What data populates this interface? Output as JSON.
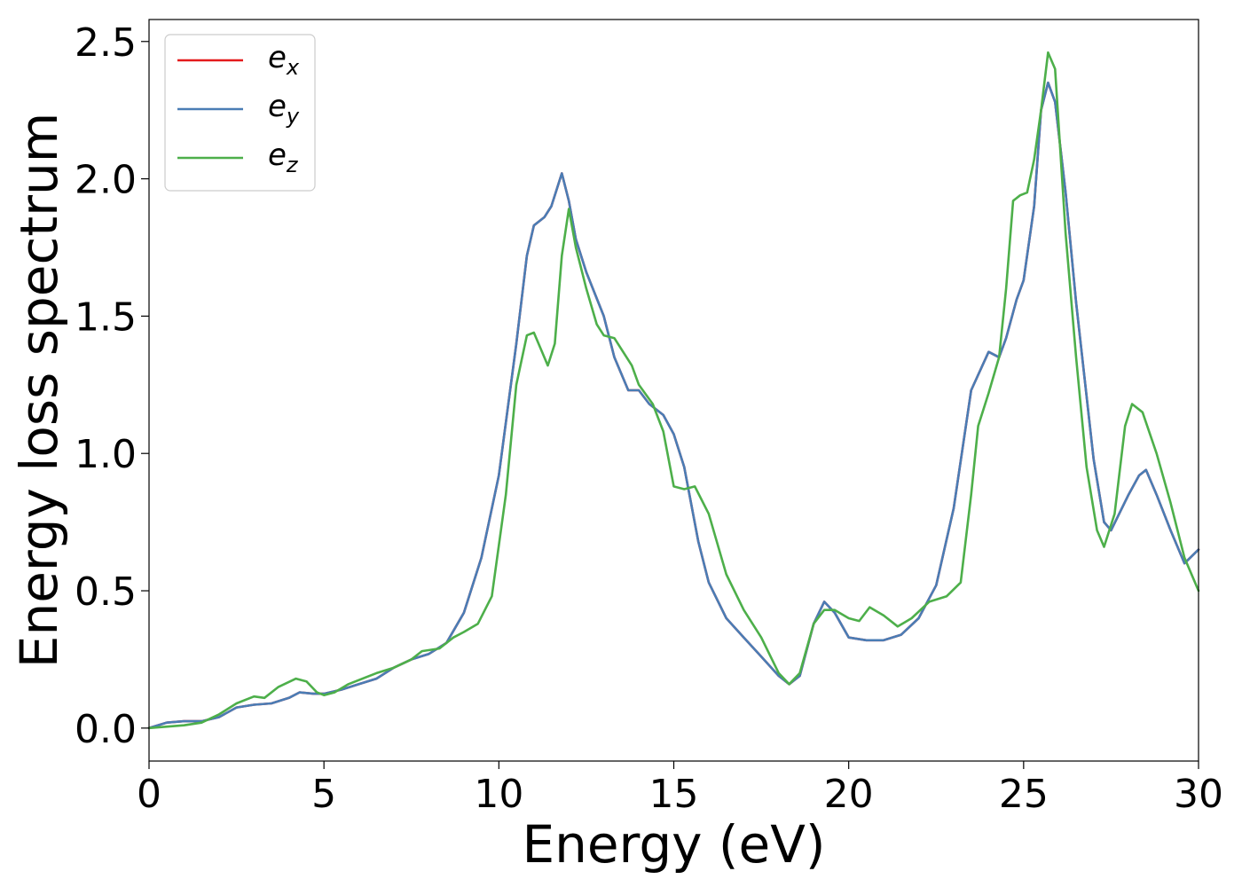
{
  "chart_data": {
    "type": "line",
    "xlabel": "Energy (eV)",
    "ylabel": "Energy loss spectrum",
    "xlim": [
      0,
      30
    ],
    "ylim": [
      -0.12,
      2.58
    ],
    "xticks": [
      0,
      5,
      10,
      15,
      20,
      25,
      30
    ],
    "xtick_labels": [
      "0",
      "5",
      "10",
      "15",
      "20",
      "25",
      "30"
    ],
    "yticks": [
      0.0,
      0.5,
      1.0,
      1.5,
      2.0,
      2.5
    ],
    "ytick_labels": [
      "0.0",
      "0.5",
      "1.0",
      "1.5",
      "2.0",
      "2.5"
    ],
    "grid": false,
    "legend_position": "top-left",
    "series": [
      {
        "name": "e",
        "subscript": "x",
        "color": "#e41a1c",
        "points": [
          [
            0,
            0
          ],
          [
            0.5,
            0.02
          ],
          [
            1,
            0.025
          ],
          [
            1.5,
            0.025
          ],
          [
            2,
            0.04
          ],
          [
            2.5,
            0.075
          ],
          [
            3,
            0.085
          ],
          [
            3.5,
            0.09
          ],
          [
            4,
            0.11
          ],
          [
            4.3,
            0.13
          ],
          [
            4.7,
            0.125
          ],
          [
            5,
            0.125
          ],
          [
            5.5,
            0.14
          ],
          [
            6,
            0.16
          ],
          [
            6.5,
            0.18
          ],
          [
            7,
            0.22
          ],
          [
            7.5,
            0.25
          ],
          [
            8,
            0.27
          ],
          [
            8.5,
            0.31
          ],
          [
            9,
            0.42
          ],
          [
            9.5,
            0.62
          ],
          [
            10,
            0.92
          ],
          [
            10.5,
            1.4
          ],
          [
            10.8,
            1.72
          ],
          [
            11,
            1.83
          ],
          [
            11.3,
            1.86
          ],
          [
            11.5,
            1.9
          ],
          [
            11.8,
            2.02
          ],
          [
            12,
            1.92
          ],
          [
            12.2,
            1.78
          ],
          [
            12.5,
            1.66
          ],
          [
            13,
            1.5
          ],
          [
            13.3,
            1.35
          ],
          [
            13.7,
            1.23
          ],
          [
            14,
            1.23
          ],
          [
            14.3,
            1.18
          ],
          [
            14.7,
            1.14
          ],
          [
            15,
            1.07
          ],
          [
            15.3,
            0.95
          ],
          [
            15.7,
            0.68
          ],
          [
            16,
            0.53
          ],
          [
            16.5,
            0.4
          ],
          [
            17,
            0.33
          ],
          [
            17.5,
            0.26
          ],
          [
            18,
            0.19
          ],
          [
            18.3,
            0.16
          ],
          [
            18.6,
            0.19
          ],
          [
            19,
            0.38
          ],
          [
            19.3,
            0.46
          ],
          [
            19.6,
            0.42
          ],
          [
            20,
            0.33
          ],
          [
            20.5,
            0.32
          ],
          [
            21,
            0.32
          ],
          [
            21.5,
            0.34
          ],
          [
            22,
            0.4
          ],
          [
            22.5,
            0.52
          ],
          [
            23,
            0.8
          ],
          [
            23.5,
            1.23
          ],
          [
            24,
            1.37
          ],
          [
            24.3,
            1.35
          ],
          [
            24.5,
            1.42
          ],
          [
            24.8,
            1.56
          ],
          [
            25,
            1.63
          ],
          [
            25.3,
            1.9
          ],
          [
            25.5,
            2.25
          ],
          [
            25.7,
            2.35
          ],
          [
            25.9,
            2.28
          ],
          [
            26.2,
            1.95
          ],
          [
            26.5,
            1.55
          ],
          [
            27,
            0.98
          ],
          [
            27.3,
            0.75
          ],
          [
            27.5,
            0.72
          ],
          [
            28,
            0.85
          ],
          [
            28.3,
            0.92
          ],
          [
            28.5,
            0.94
          ],
          [
            28.8,
            0.85
          ],
          [
            29.2,
            0.72
          ],
          [
            29.6,
            0.6
          ],
          [
            30,
            0.65
          ]
        ]
      },
      {
        "name": "e",
        "subscript": "y",
        "color": "#4a7db5",
        "points": [
          [
            0,
            0
          ],
          [
            0.5,
            0.02
          ],
          [
            1,
            0.025
          ],
          [
            1.5,
            0.025
          ],
          [
            2,
            0.04
          ],
          [
            2.5,
            0.075
          ],
          [
            3,
            0.085
          ],
          [
            3.5,
            0.09
          ],
          [
            4,
            0.11
          ],
          [
            4.3,
            0.13
          ],
          [
            4.7,
            0.125
          ],
          [
            5,
            0.125
          ],
          [
            5.5,
            0.14
          ],
          [
            6,
            0.16
          ],
          [
            6.5,
            0.18
          ],
          [
            7,
            0.22
          ],
          [
            7.5,
            0.25
          ],
          [
            8,
            0.27
          ],
          [
            8.5,
            0.31
          ],
          [
            9,
            0.42
          ],
          [
            9.5,
            0.62
          ],
          [
            10,
            0.92
          ],
          [
            10.5,
            1.4
          ],
          [
            10.8,
            1.72
          ],
          [
            11,
            1.83
          ],
          [
            11.3,
            1.86
          ],
          [
            11.5,
            1.9
          ],
          [
            11.8,
            2.02
          ],
          [
            12,
            1.92
          ],
          [
            12.2,
            1.78
          ],
          [
            12.5,
            1.66
          ],
          [
            13,
            1.5
          ],
          [
            13.3,
            1.35
          ],
          [
            13.7,
            1.23
          ],
          [
            14,
            1.23
          ],
          [
            14.3,
            1.18
          ],
          [
            14.7,
            1.14
          ],
          [
            15,
            1.07
          ],
          [
            15.3,
            0.95
          ],
          [
            15.7,
            0.68
          ],
          [
            16,
            0.53
          ],
          [
            16.5,
            0.4
          ],
          [
            17,
            0.33
          ],
          [
            17.5,
            0.26
          ],
          [
            18,
            0.19
          ],
          [
            18.3,
            0.16
          ],
          [
            18.6,
            0.19
          ],
          [
            19,
            0.38
          ],
          [
            19.3,
            0.46
          ],
          [
            19.6,
            0.42
          ],
          [
            20,
            0.33
          ],
          [
            20.5,
            0.32
          ],
          [
            21,
            0.32
          ],
          [
            21.5,
            0.34
          ],
          [
            22,
            0.4
          ],
          [
            22.5,
            0.52
          ],
          [
            23,
            0.8
          ],
          [
            23.5,
            1.23
          ],
          [
            24,
            1.37
          ],
          [
            24.3,
            1.35
          ],
          [
            24.5,
            1.42
          ],
          [
            24.8,
            1.56
          ],
          [
            25,
            1.63
          ],
          [
            25.3,
            1.9
          ],
          [
            25.5,
            2.25
          ],
          [
            25.7,
            2.35
          ],
          [
            25.9,
            2.28
          ],
          [
            26.2,
            1.95
          ],
          [
            26.5,
            1.55
          ],
          [
            27,
            0.98
          ],
          [
            27.3,
            0.75
          ],
          [
            27.5,
            0.72
          ],
          [
            28,
            0.85
          ],
          [
            28.3,
            0.92
          ],
          [
            28.5,
            0.94
          ],
          [
            28.8,
            0.85
          ],
          [
            29.2,
            0.72
          ],
          [
            29.6,
            0.6
          ],
          [
            30,
            0.65
          ]
        ]
      },
      {
        "name": "e",
        "subscript": "z",
        "color": "#4daf4a",
        "points": [
          [
            0,
            0
          ],
          [
            1,
            0.01
          ],
          [
            1.5,
            0.02
          ],
          [
            2,
            0.05
          ],
          [
            2.5,
            0.09
          ],
          [
            3,
            0.115
          ],
          [
            3.3,
            0.11
          ],
          [
            3.7,
            0.15
          ],
          [
            4.2,
            0.18
          ],
          [
            4.5,
            0.17
          ],
          [
            4.8,
            0.13
          ],
          [
            5,
            0.12
          ],
          [
            5.3,
            0.13
          ],
          [
            5.7,
            0.16
          ],
          [
            6.5,
            0.2
          ],
          [
            7,
            0.22
          ],
          [
            7.5,
            0.25
          ],
          [
            7.8,
            0.28
          ],
          [
            8.3,
            0.29
          ],
          [
            8.7,
            0.33
          ],
          [
            9,
            0.35
          ],
          [
            9.4,
            0.38
          ],
          [
            9.8,
            0.48
          ],
          [
            10.2,
            0.85
          ],
          [
            10.5,
            1.25
          ],
          [
            10.8,
            1.43
          ],
          [
            11,
            1.44
          ],
          [
            11.2,
            1.38
          ],
          [
            11.4,
            1.32
          ],
          [
            11.6,
            1.4
          ],
          [
            11.8,
            1.72
          ],
          [
            12,
            1.89
          ],
          [
            12.2,
            1.75
          ],
          [
            12.5,
            1.6
          ],
          [
            12.8,
            1.47
          ],
          [
            13,
            1.43
          ],
          [
            13.3,
            1.42
          ],
          [
            13.6,
            1.36
          ],
          [
            13.8,
            1.32
          ],
          [
            14,
            1.25
          ],
          [
            14.4,
            1.18
          ],
          [
            14.7,
            1.08
          ],
          [
            15,
            0.88
          ],
          [
            15.3,
            0.87
          ],
          [
            15.6,
            0.88
          ],
          [
            16,
            0.78
          ],
          [
            16.5,
            0.56
          ],
          [
            17,
            0.43
          ],
          [
            17.5,
            0.33
          ],
          [
            18,
            0.2
          ],
          [
            18.3,
            0.16
          ],
          [
            18.6,
            0.2
          ],
          [
            19,
            0.38
          ],
          [
            19.3,
            0.43
          ],
          [
            19.6,
            0.43
          ],
          [
            20,
            0.4
          ],
          [
            20.3,
            0.39
          ],
          [
            20.6,
            0.44
          ],
          [
            21,
            0.41
          ],
          [
            21.4,
            0.37
          ],
          [
            21.8,
            0.4
          ],
          [
            22.3,
            0.46
          ],
          [
            22.8,
            0.48
          ],
          [
            23.2,
            0.53
          ],
          [
            23.5,
            0.85
          ],
          [
            23.7,
            1.1
          ],
          [
            24,
            1.22
          ],
          [
            24.3,
            1.35
          ],
          [
            24.5,
            1.6
          ],
          [
            24.7,
            1.92
          ],
          [
            24.9,
            1.94
          ],
          [
            25.1,
            1.95
          ],
          [
            25.3,
            2.07
          ],
          [
            25.5,
            2.25
          ],
          [
            25.7,
            2.46
          ],
          [
            25.9,
            2.4
          ],
          [
            26.2,
            1.8
          ],
          [
            26.5,
            1.35
          ],
          [
            26.8,
            0.95
          ],
          [
            27.1,
            0.72
          ],
          [
            27.3,
            0.66
          ],
          [
            27.6,
            0.78
          ],
          [
            27.9,
            1.1
          ],
          [
            28.1,
            1.18
          ],
          [
            28.4,
            1.15
          ],
          [
            28.8,
            1.0
          ],
          [
            29.2,
            0.82
          ],
          [
            29.6,
            0.62
          ],
          [
            30,
            0.5
          ]
        ]
      }
    ]
  }
}
